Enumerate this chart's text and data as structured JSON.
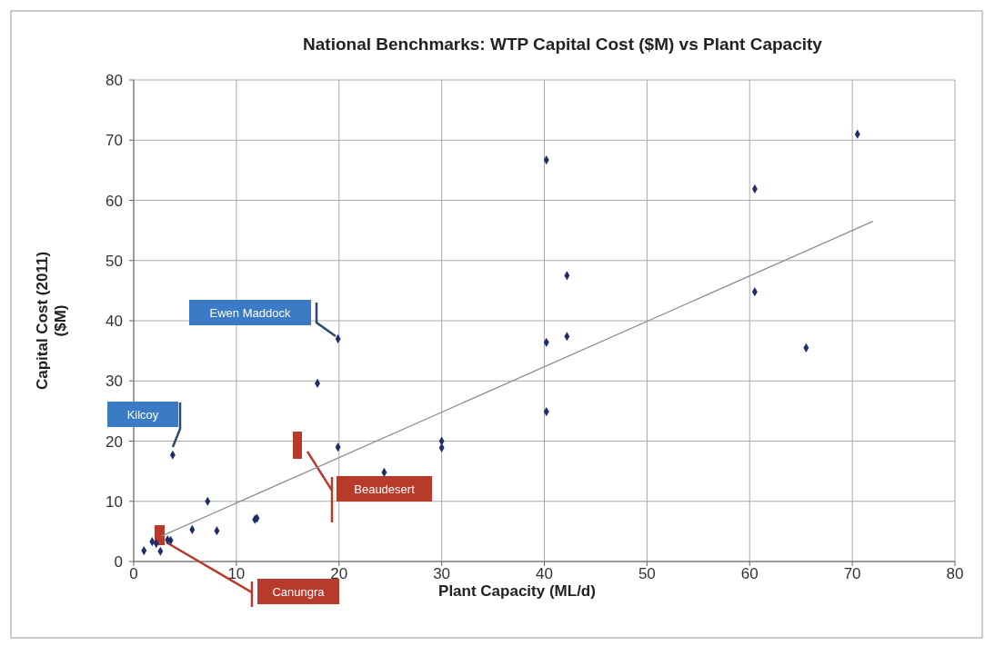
{
  "chart_data": {
    "type": "scatter",
    "title": "National Benchmarks: WTP Capital Cost ($M) vs Plant Capacity",
    "xlabel": "Plant Capacity (ML/d)",
    "ylabel": "Capital Cost (2011)\n($M)",
    "xlim": [
      0,
      80
    ],
    "ylim": [
      0,
      80
    ],
    "xticks": [
      0,
      10,
      20,
      30,
      40,
      50,
      60,
      70,
      80
    ],
    "yticks": [
      0,
      10,
      20,
      30,
      40,
      50,
      60,
      70,
      80
    ],
    "grid": true,
    "series": [
      {
        "color": "#1f2d6b",
        "marker": "diamond",
        "x": [
          1.0,
          1.8,
          2.2,
          2.6,
          3.6,
          3.3,
          3.8,
          5.7,
          7.2,
          8.1,
          11.8,
          12.0,
          17.9,
          19.9,
          19.9,
          24.4,
          30,
          30,
          40.2,
          40.2,
          40.2,
          42.2,
          42.2,
          60.5,
          60.5,
          65.5,
          70.5
        ],
        "values": [
          1.8,
          3.3,
          3.0,
          1.7,
          3.5,
          3.6,
          17.7,
          5.3,
          10.0,
          5.1,
          7.0,
          7.2,
          29.6,
          37.0,
          19.0,
          14.8,
          20.0,
          18.9,
          66.7,
          36.4,
          24.9,
          47.5,
          37.4,
          61.9,
          44.8,
          35.5,
          71.0
        ]
      },
      {
        "type": "line",
        "color": "#8c8c8c",
        "x": [
          2.7,
          72
        ],
        "values": [
          4.2,
          56.5
        ]
      }
    ],
    "annotations": [
      "Kilcoy",
      "Ewen Maddock",
      "Beaudesert",
      "Canungra"
    ]
  }
}
